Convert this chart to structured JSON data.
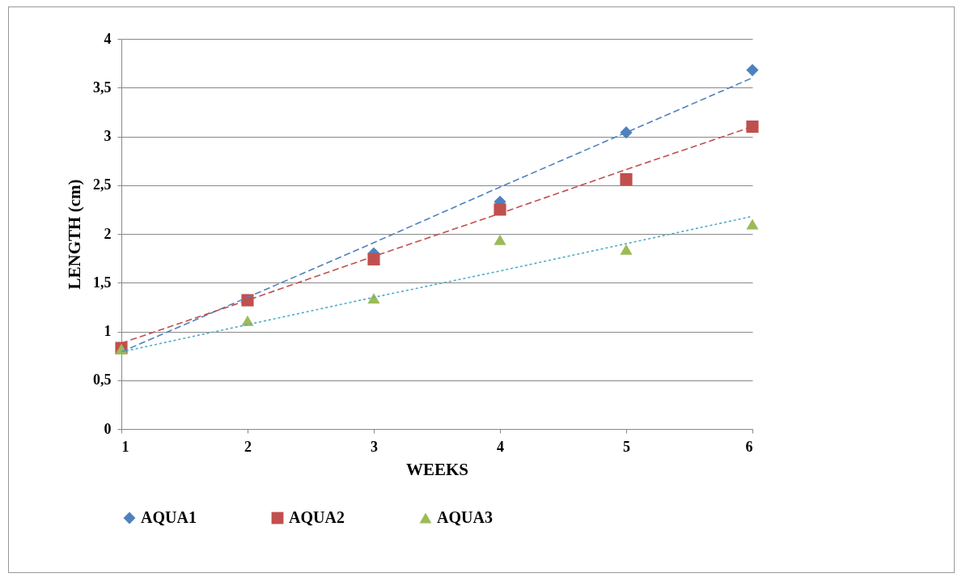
{
  "chart_data": {
    "type": "scatter",
    "xlabel": "WEEKS",
    "ylabel": "LENGTH (cm)",
    "x": [
      1,
      2,
      3,
      4,
      5,
      6
    ],
    "series": [
      {
        "name": "AQUA1",
        "color": "#4f81bd",
        "marker": "diamond",
        "values": [
          null,
          null,
          1.8,
          2.33,
          3.04,
          3.68
        ]
      },
      {
        "name": "AQUA2",
        "color": "#c0504d",
        "marker": "square",
        "values": [
          0.83,
          1.32,
          1.74,
          2.25,
          2.56,
          3.1
        ]
      },
      {
        "name": "AQUA3",
        "color": "#9bbb59",
        "marker": "triangle",
        "values": [
          0.82,
          1.11,
          1.34,
          1.94,
          1.84,
          2.1
        ]
      },
      {
        "type": "line",
        "color": "#4f81bd",
        "line_style": "dashed",
        "values": [
          0.79,
          1.35,
          1.91,
          2.48,
          3.04,
          3.6
        ]
      },
      {
        "type": "line",
        "color": "#c0504d",
        "line_style": "dashed",
        "values": [
          0.88,
          1.32,
          1.77,
          2.21,
          2.66,
          3.1
        ]
      },
      {
        "type": "line",
        "color": "#4bacc6",
        "line_style": "dotted",
        "values": [
          0.79,
          1.07,
          1.35,
          1.62,
          1.9,
          2.18
        ]
      }
    ],
    "xlim": [
      1,
      6
    ],
    "xticks": [
      1,
      2,
      3,
      4,
      5,
      6
    ],
    "ylim": [
      0,
      4
    ],
    "yticks": [
      0,
      {
        "value": 0.5,
        "label": "0,5"
      },
      1,
      {
        "value": 1.5,
        "label": "1,5"
      },
      2,
      {
        "value": 2.5,
        "label": "2,5"
      },
      3,
      {
        "value": 3.5,
        "label": "3,5"
      },
      4
    ],
    "grid": "y",
    "legend": "bottom"
  }
}
